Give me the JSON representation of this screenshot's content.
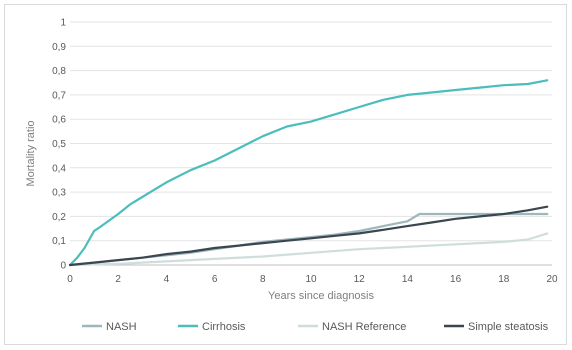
{
  "chart_data": {
    "type": "line",
    "title": "",
    "xlabel": "Years since diagnosis",
    "ylabel": "Mortality ratio",
    "xlim": [
      0,
      20
    ],
    "ylim": [
      0,
      1
    ],
    "x_ticks": [
      "0",
      "2",
      "4",
      "6",
      "8",
      "10",
      "12",
      "14",
      "16",
      "18",
      "20"
    ],
    "y_ticks": [
      "0",
      "0,1",
      "0,2",
      "0,3",
      "0,4",
      "0,5",
      "0,6",
      "0,7",
      "0,8",
      "0,9",
      "1"
    ],
    "grid": true,
    "legend_position": "bottom",
    "series": [
      {
        "name": "NASH",
        "color": "#9fb6bd",
        "x": [
          0,
          1,
          2,
          3,
          4,
          5,
          6,
          7,
          8,
          9,
          10,
          11,
          12,
          13,
          14,
          14.5,
          15,
          16,
          17,
          18,
          19,
          19.8
        ],
        "y": [
          0,
          0.01,
          0.02,
          0.03,
          0.04,
          0.05,
          0.065,
          0.08,
          0.095,
          0.105,
          0.115,
          0.125,
          0.14,
          0.16,
          0.18,
          0.21,
          0.21,
          0.21,
          0.21,
          0.21,
          0.21,
          0.21
        ]
      },
      {
        "name": "Cirrhosis",
        "color": "#4bbdbd",
        "x": [
          0,
          0.3,
          0.6,
          1,
          1.3,
          2,
          2.5,
          3,
          3.5,
          4,
          5,
          6,
          7,
          8,
          9,
          10,
          11,
          12,
          13,
          14,
          15,
          16,
          17,
          18,
          19,
          19.8
        ],
        "y": [
          0,
          0.03,
          0.07,
          0.14,
          0.16,
          0.21,
          0.25,
          0.28,
          0.31,
          0.34,
          0.39,
          0.43,
          0.48,
          0.53,
          0.57,
          0.59,
          0.62,
          0.65,
          0.68,
          0.7,
          0.71,
          0.72,
          0.73,
          0.74,
          0.745,
          0.76
        ]
      },
      {
        "name": "NASH Reference",
        "color": "#cfdddd",
        "x": [
          0,
          2,
          4,
          6,
          8,
          10,
          12,
          14,
          16,
          18,
          19,
          19.8
        ],
        "y": [
          0,
          0.005,
          0.015,
          0.025,
          0.035,
          0.05,
          0.065,
          0.075,
          0.085,
          0.095,
          0.105,
          0.13
        ]
      },
      {
        "name": "Simple steatosis",
        "color": "#3a4750",
        "x": [
          0,
          1,
          2,
          3,
          4,
          5,
          6,
          7,
          8,
          9,
          10,
          11,
          12,
          13,
          14,
          15,
          16,
          17,
          18,
          19,
          19.8
        ],
        "y": [
          0,
          0.01,
          0.02,
          0.03,
          0.045,
          0.055,
          0.07,
          0.08,
          0.09,
          0.1,
          0.11,
          0.12,
          0.13,
          0.145,
          0.16,
          0.175,
          0.19,
          0.2,
          0.21,
          0.225,
          0.24
        ]
      }
    ]
  },
  "colors": {
    "gridline": "#e3e3e3",
    "axis": "#bfbfbf",
    "frame": "#d9d9d9"
  }
}
